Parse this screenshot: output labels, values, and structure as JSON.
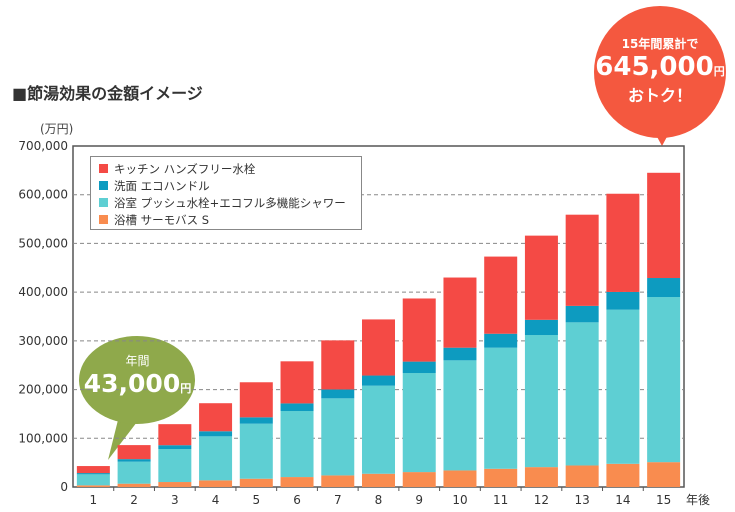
{
  "title": "■節湯効果の金額イメージ",
  "annual_bubble": {
    "label": "年間",
    "amount": "43,000",
    "unit": "円"
  },
  "total_bubble": {
    "label": "15年間累計で",
    "amount": "645,000",
    "unit": "円",
    "tagline": "おトク！"
  },
  "colors": {
    "kitchen": "#f44a45",
    "wash": "#0d9bc0",
    "bath": "#5ecfd3",
    "tub": "#f98c4f",
    "green_bubble": "#8fa94b",
    "red_bubble": "#f4583f"
  },
  "chart_data": {
    "type": "bar",
    "stacked": true,
    "ylabel": "(万円)",
    "xlabel": "年後",
    "ylim": [
      0,
      700000
    ],
    "yticks": [
      "0",
      "100,000",
      "200,000",
      "300,000",
      "400,000",
      "500,000",
      "600,000",
      "700,000"
    ],
    "categories": [
      "1",
      "2",
      "3",
      "4",
      "5",
      "6",
      "7",
      "8",
      "9",
      "10",
      "11",
      "12",
      "13",
      "14",
      "15"
    ],
    "grid": true,
    "legend": "top-left",
    "series": [
      {
        "name": "浴槽 サーモバス S",
        "color": "#f98c4f",
        "values": [
          3400,
          6800,
          10200,
          13600,
          17000,
          20400,
          23800,
          27200,
          30600,
          34000,
          37400,
          40800,
          44200,
          47600,
          51000
        ]
      },
      {
        "name": "浴室 プッシュ水栓+エコフル多機能シャワー",
        "color": "#5ecfd3",
        "values": [
          22600,
          45200,
          67800,
          90400,
          113000,
          135600,
          158200,
          180800,
          203400,
          226000,
          248600,
          271200,
          293800,
          316400,
          339000
        ]
      },
      {
        "name": "洗面 エコハンドル",
        "color": "#0d9bc0",
        "values": [
          2600,
          5200,
          7800,
          10400,
          13000,
          15600,
          18200,
          20800,
          23400,
          26000,
          28600,
          31200,
          33800,
          36400,
          39000
        ]
      },
      {
        "name": "キッチン ハンズフリー水栓",
        "color": "#f44a45",
        "values": [
          14400,
          28800,
          43200,
          57600,
          72000,
          86400,
          100800,
          115200,
          129600,
          144000,
          158400,
          172800,
          187200,
          201600,
          216000
        ]
      }
    ]
  }
}
